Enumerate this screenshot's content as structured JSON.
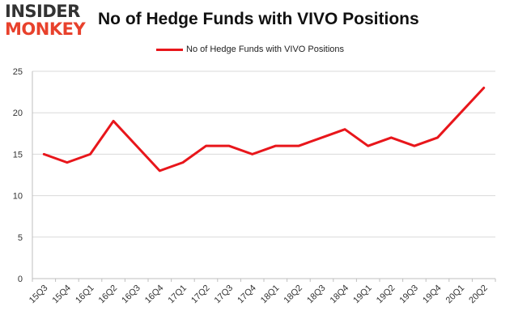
{
  "logo": {
    "top": "INSIDER",
    "bottom": "MONKEY"
  },
  "chart_data": {
    "type": "line",
    "title": "No of Hedge Funds with VIVO Positions",
    "xlabel": "",
    "ylabel": "",
    "categories": [
      "15Q3",
      "15Q4",
      "16Q1",
      "16Q2",
      "16Q3",
      "16Q4",
      "17Q1",
      "17Q2",
      "17Q3",
      "17Q4",
      "18Q1",
      "18Q2",
      "18Q3",
      "18Q4",
      "19Q1",
      "19Q2",
      "19Q3",
      "19Q4",
      "20Q1",
      "20Q2"
    ],
    "series": [
      {
        "name": "No of Hedge Funds with VIVO Positions",
        "color": "#e8161b",
        "values": [
          15,
          14,
          15,
          19,
          16,
          13,
          14,
          16,
          16,
          15,
          16,
          16,
          17,
          18,
          16,
          17,
          16,
          17,
          20,
          23
        ]
      }
    ],
    "ylim": [
      0,
      25
    ],
    "yticks": [
      0,
      5,
      10,
      15,
      20,
      25
    ],
    "grid": "horizontal",
    "legend": "top-center"
  }
}
